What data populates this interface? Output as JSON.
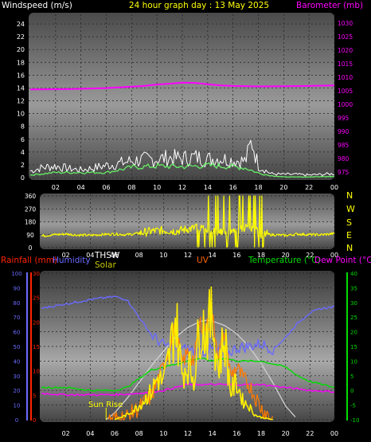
{
  "title": "24 hour graph day : 13 May 2025",
  "colors": {
    "wind_speed": "#ffffff",
    "wind_avg": "#66ee66",
    "barometer": "#ff00ff",
    "direction": "#ffff00",
    "rain": "#ff2200",
    "humidity": "#6a6aff",
    "thsw": "#ffffff",
    "solar": "#c8c800",
    "uv": "#ff6600",
    "temperature": "#00dd00",
    "dewpoint": "#ff00ff",
    "sun_curve": "#d0d0d0",
    "sunrise_text": "#ffff00"
  },
  "labels": {
    "windspeed": "Windspeed (m/s)",
    "barometer": "Barometer (mb)",
    "rainfall": "Rainfall (mm)",
    "humidity": "Humidity",
    "thsw": "THSW",
    "solar": "Solar",
    "uv": "UV",
    "temperature": "Temperature (°C)",
    "dewpoint": "Dew Point (°C)",
    "sunrise": "Sun Rise",
    "compass": [
      "N",
      "W",
      "S",
      "E",
      "N"
    ]
  },
  "chart_data": [
    {
      "type": "line",
      "name": "wind_barometer",
      "x_ticks": [
        "02",
        "04",
        "06",
        "08",
        "10",
        "12",
        "14",
        "16",
        "18",
        "20",
        "22",
        "00"
      ],
      "y_left_ticks": [
        "0",
        "2",
        "4",
        "6",
        "8",
        "10",
        "12",
        "14",
        "16",
        "18",
        "20",
        "22",
        "24"
      ],
      "y_left_range": [
        0,
        25
      ],
      "y_right_ticks": [
        "975",
        "980",
        "985",
        "990",
        "995",
        "1000",
        "1005",
        "1010",
        "1015",
        "1020",
        "1025",
        "1030"
      ],
      "y_right_range": [
        973,
        1032
      ],
      "series": [
        {
          "key": "barometer",
          "x": [
            0,
            3,
            6,
            9,
            10,
            11,
            12,
            13,
            14,
            15,
            16,
            18,
            20,
            22,
            24
          ],
          "values": [
            1005.5,
            1005.6,
            1006.0,
            1006.8,
            1007.3,
            1007.6,
            1008.0,
            1007.9,
            1007.4,
            1007.0,
            1006.8,
            1006.6,
            1006.7,
            1006.8,
            1007.0
          ]
        },
        {
          "key": "wind_speed",
          "x": [
            0,
            1,
            2,
            3,
            4,
            5,
            6,
            7,
            8,
            9,
            10,
            11,
            12,
            13,
            14,
            15,
            16,
            17,
            17.5,
            18,
            19,
            20,
            21,
            22,
            23,
            24
          ],
          "values": [
            1.0,
            1.6,
            1.8,
            1.4,
            1.2,
            1.5,
            1.9,
            2.2,
            2.6,
            2.8,
            2.9,
            3.1,
            3.0,
            3.2,
            2.9,
            3.0,
            2.7,
            2.6,
            5.8,
            1.8,
            0.6,
            0.5,
            0.5,
            0.4,
            0.5,
            0.6
          ]
        },
        {
          "key": "wind_avg",
          "x": [
            0,
            2,
            4,
            6,
            8,
            10,
            12,
            14,
            16,
            17,
            18,
            19,
            20,
            22,
            24
          ],
          "values": [
            0.4,
            0.8,
            0.8,
            0.8,
            1.6,
            1.8,
            1.7,
            1.9,
            1.7,
            1.5,
            0.7,
            0.3,
            0.1,
            0.1,
            0.2
          ]
        }
      ]
    },
    {
      "type": "line",
      "name": "wind_direction",
      "x_ticks": [
        "02",
        "04",
        "06",
        "08",
        "10",
        "12",
        "14",
        "16",
        "18",
        "20",
        "22",
        "00"
      ],
      "y_ticks": [
        "0",
        "90",
        "180",
        "270",
        "360"
      ],
      "y_range": [
        0,
        360
      ],
      "series": [
        {
          "key": "direction",
          "x": [
            0,
            1,
            2,
            3,
            4,
            5,
            6,
            7,
            8,
            9,
            10,
            11,
            12,
            13,
            14,
            15,
            16,
            17,
            18,
            19,
            20,
            21,
            22,
            23,
            24
          ],
          "values": [
            82,
            90,
            95,
            88,
            86,
            92,
            95,
            90,
            100,
            115,
            120,
            115,
            130,
            140,
            120,
            110,
            125,
            140,
            95,
            90,
            85,
            95,
            90,
            90,
            98
          ]
        }
      ]
    },
    {
      "type": "line",
      "name": "rain_humidity_solar_temperature",
      "x_ticks": [
        "02",
        "04",
        "06",
        "08",
        "10",
        "12",
        "14",
        "16",
        "18",
        "20",
        "22",
        "00"
      ],
      "y_rain_ticks": [
        "0",
        "5",
        "10",
        "15",
        "20",
        "25",
        "30"
      ],
      "y_rain_range": [
        0,
        30
      ],
      "y_humidity_ticks": [
        "0",
        "10",
        "20",
        "30",
        "40",
        "50",
        "60",
        "70",
        "80",
        "90",
        "100"
      ],
      "y_humidity_range": [
        0,
        100
      ],
      "y_temp_ticks": [
        "-10",
        "-5",
        "0",
        "5",
        "10",
        "15",
        "20",
        "25",
        "30",
        "35",
        "40"
      ],
      "y_temp_range": [
        -10,
        40
      ],
      "series": [
        {
          "key": "humidity",
          "x": [
            0,
            2,
            4,
            6,
            7,
            8,
            9,
            10,
            11,
            12,
            13,
            14,
            15,
            16,
            17,
            18,
            19,
            20,
            21,
            22,
            23,
            24
          ],
          "values": [
            76,
            79,
            82,
            84,
            82,
            70,
            58,
            51,
            48,
            48,
            46,
            48,
            44,
            49,
            50,
            52,
            48,
            56,
            66,
            73,
            76,
            77
          ]
        },
        {
          "key": "temperature",
          "x": [
            0,
            2,
            4,
            6,
            7,
            8,
            9,
            10,
            11,
            12,
            13,
            14,
            15,
            16,
            17,
            18,
            19,
            20,
            21,
            22,
            23,
            24
          ],
          "values": [
            1,
            1,
            0,
            0,
            1,
            4,
            7,
            8,
            9,
            10,
            11,
            10,
            11,
            10,
            10,
            10,
            9,
            8,
            5,
            3,
            2,
            1
          ]
        },
        {
          "key": "dewpoint",
          "x": [
            0,
            2,
            4,
            6,
            8,
            10,
            12,
            14,
            16,
            18,
            20,
            22,
            24
          ],
          "values": [
            -1,
            -1.5,
            -1.5,
            -1.5,
            -1,
            0,
            2,
            2,
            2,
            2,
            1,
            0,
            -0.5
          ]
        },
        {
          "key": "thsw",
          "x": [
            5.5,
            7,
            8,
            9,
            10,
            10.5,
            11,
            11.5,
            12,
            12.5,
            13,
            13.5,
            14,
            14.5,
            15,
            15.5,
            16,
            16.5,
            17,
            18,
            19
          ],
          "values": [
            -10,
            -9,
            -6,
            -2,
            8,
            15,
            22,
            9,
            13,
            10,
            23,
            21,
            25,
            12,
            20,
            5,
            8,
            4,
            2,
            -6,
            -10
          ]
        },
        {
          "key": "solar",
          "x": [
            6,
            7,
            8,
            9,
            9.5,
            10,
            10.5,
            11,
            11.5,
            12,
            12.5,
            13,
            13.5,
            14,
            14.5,
            15,
            15.5,
            16,
            16.5,
            17,
            17.5,
            18,
            19
          ],
          "values": [
            0,
            1,
            3,
            6,
            9,
            8,
            14,
            22,
            10,
            12,
            9,
            21,
            19,
            22,
            11,
            18,
            6,
            8,
            4,
            3,
            1,
            0.5,
            0
          ]
        },
        {
          "key": "sun_curve",
          "x": [
            5.3,
            6,
            7,
            8,
            9,
            10,
            11,
            12,
            13,
            13.6,
            14,
            15,
            16,
            17,
            18,
            19,
            20,
            21
          ],
          "values": [
            0,
            1.4,
            4.3,
            7.6,
            11.0,
            14.0,
            16.9,
            18.9,
            20.1,
            20.4,
            20.2,
            19.3,
            17.6,
            15.0,
            11.5,
            7.4,
            2.8,
            0
          ]
        }
      ]
    }
  ]
}
